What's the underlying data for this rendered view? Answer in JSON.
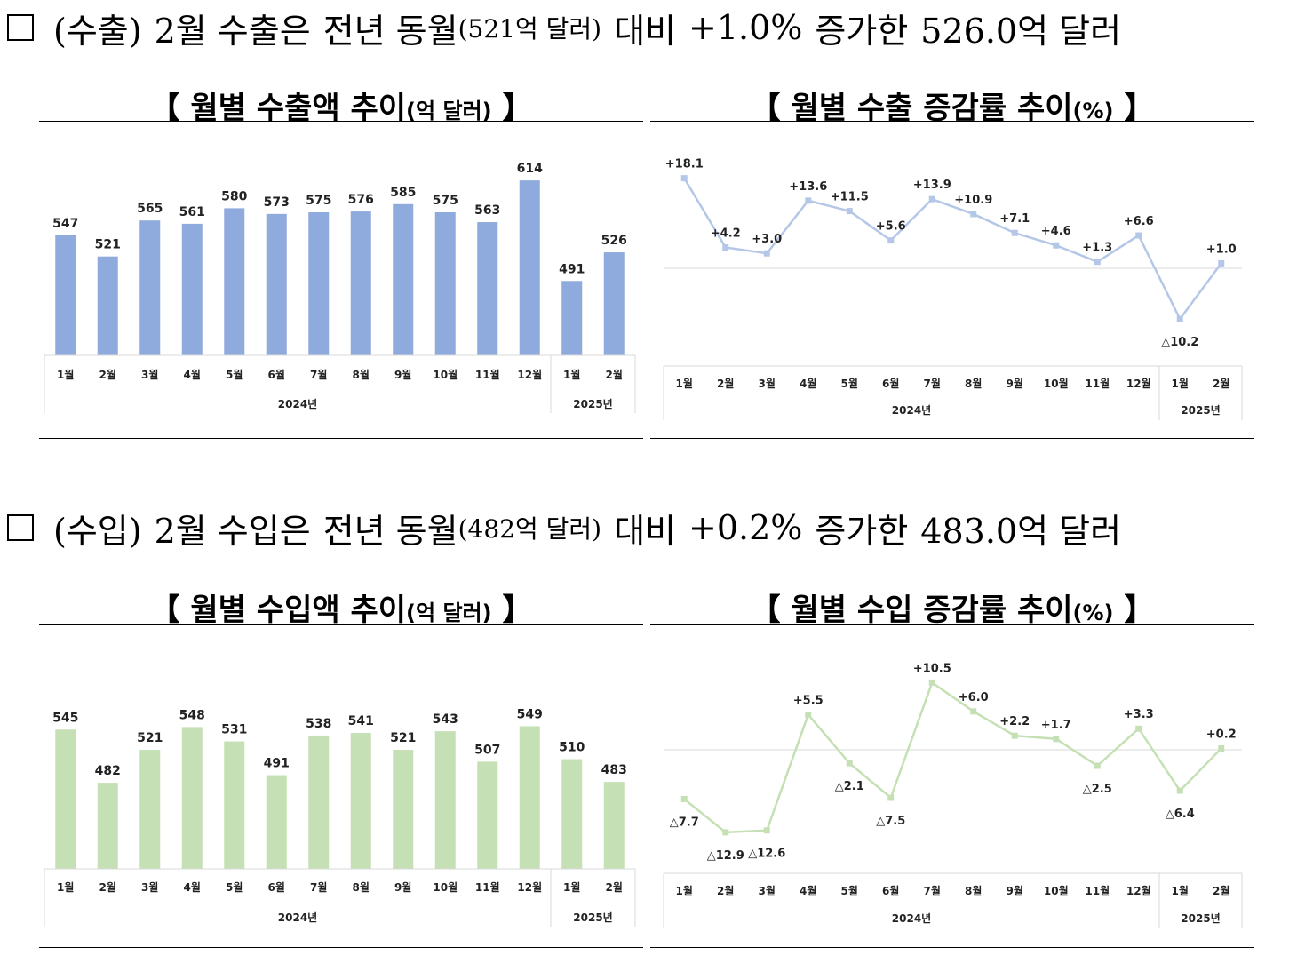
{
  "headlines": [
    {
      "box": "□",
      "tag": "(수출)",
      "main": "2월 수출은",
      "part1": "전년 동월",
      "paren": "(521억 달러)",
      "part2": "대비",
      "change": "+1.0%",
      "part3": "증가한",
      "value": "526.0억 달러"
    },
    {
      "box": "□",
      "tag": "(수입)",
      "main": "2월 수입은",
      "part1": "전년 동월",
      "paren": "(482억 달러)",
      "part2": "대비",
      "change": "+0.2%",
      "part3": "증가한",
      "value": "483.0억 달러"
    }
  ],
  "panels": {
    "export_amount": {
      "title": "【 월별 수출액 추이",
      "unit": "(억 달러)",
      "close": "】"
    },
    "export_rate": {
      "title": "【 월별 수출 증감률 추이",
      "unit": "(%)",
      "close": "】"
    },
    "import_amount": {
      "title": "【 월별 수입액 추이",
      "unit": "(억 달러)",
      "close": "】"
    },
    "import_rate": {
      "title": "【 월별 수입 증감률 추이",
      "unit": "(%)",
      "close": "】"
    }
  },
  "colors": {
    "export_bar": "#8faadc",
    "import_bar": "#c5e0b4",
    "export_line": "#b4c7e7",
    "import_line": "#c5e0b4",
    "axis": "#d9d9d9"
  },
  "chart_data": [
    {
      "type": "bar",
      "title": "월별 수출액 추이(억 달러)",
      "categories": [
        "1월",
        "2월",
        "3월",
        "4월",
        "5월",
        "6월",
        "7월",
        "8월",
        "9월",
        "10월",
        "11월",
        "12월",
        "1월",
        "2월"
      ],
      "groups": [
        {
          "label": "2024년",
          "count": 12
        },
        {
          "label": "2025년",
          "count": 2
        }
      ],
      "values": [
        547,
        521,
        565,
        561,
        580,
        573,
        575,
        576,
        585,
        575,
        563,
        614,
        491,
        526
      ],
      "labels": [
        "547",
        "521",
        "565",
        "561",
        "580",
        "573",
        "575",
        "576",
        "585",
        "575",
        "563",
        "614",
        "491",
        "526"
      ]
    },
    {
      "type": "line",
      "title": "월별 수출 증감률 추이(%)",
      "categories": [
        "1월",
        "2월",
        "3월",
        "4월",
        "5월",
        "6월",
        "7월",
        "8월",
        "9월",
        "10월",
        "11월",
        "12월",
        "1월",
        "2월"
      ],
      "groups": [
        {
          "label": "2024년",
          "count": 12
        },
        {
          "label": "2025년",
          "count": 2
        }
      ],
      "values": [
        18.1,
        4.2,
        3.0,
        13.6,
        11.5,
        5.6,
        13.9,
        10.9,
        7.1,
        4.6,
        1.3,
        6.6,
        -10.2,
        1.0
      ],
      "labels": [
        "+18.1",
        "+4.2",
        "+3.0",
        "+13.6",
        "+11.5",
        "+5.6",
        "+13.9",
        "+10.9",
        "+7.1",
        "+4.6",
        "+1.3",
        "+6.6",
        "△10.2",
        "+1.0"
      ],
      "label_pos": [
        "above",
        "above",
        "above",
        "above",
        "above",
        "above",
        "above",
        "above",
        "above",
        "above",
        "above",
        "above",
        "below",
        "above"
      ]
    },
    {
      "type": "bar",
      "title": "월별 수입액 추이(억 달러)",
      "categories": [
        "1월",
        "2월",
        "3월",
        "4월",
        "5월",
        "6월",
        "7월",
        "8월",
        "9월",
        "10월",
        "11월",
        "12월",
        "1월",
        "2월"
      ],
      "groups": [
        {
          "label": "2024년",
          "count": 12
        },
        {
          "label": "2025년",
          "count": 2
        }
      ],
      "values": [
        545,
        482,
        521,
        548,
        531,
        491,
        538,
        541,
        521,
        543,
        507,
        549,
        510,
        483
      ],
      "labels": [
        "545",
        "482",
        "521",
        "548",
        "531",
        "491",
        "538",
        "541",
        "521",
        "543",
        "507",
        "549",
        "510",
        "483"
      ]
    },
    {
      "type": "line",
      "title": "월별 수입 증감률 추이(%)",
      "categories": [
        "1월",
        "2월",
        "3월",
        "4월",
        "5월",
        "6월",
        "7월",
        "8월",
        "9월",
        "10월",
        "11월",
        "12월",
        "1월",
        "2월"
      ],
      "groups": [
        {
          "label": "2024년",
          "count": 12
        },
        {
          "label": "2025년",
          "count": 2
        }
      ],
      "values": [
        -7.7,
        -12.9,
        -12.6,
        5.5,
        -2.1,
        -7.5,
        10.5,
        6.0,
        2.2,
        1.7,
        -2.5,
        3.3,
        -6.4,
        0.2
      ],
      "labels": [
        "△7.7",
        "△12.9",
        "△12.6",
        "+5.5",
        "△2.1",
        "△7.5",
        "+10.5",
        "+6.0",
        "+2.2",
        "+1.7",
        "△2.5",
        "+3.3",
        "△6.4",
        "+0.2"
      ],
      "label_pos": [
        "below",
        "below",
        "below",
        "above",
        "below",
        "below",
        "above",
        "above",
        "above",
        "above",
        "below",
        "above",
        "below",
        "above"
      ]
    }
  ]
}
